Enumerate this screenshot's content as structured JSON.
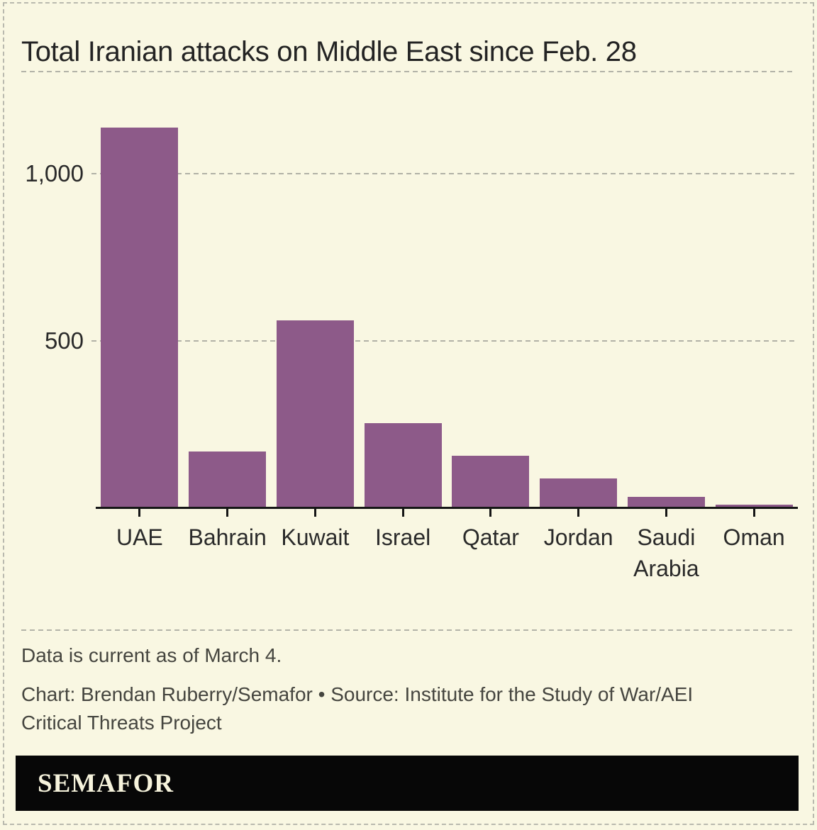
{
  "title": "Total Iranian attacks on Middle East since Feb. 28",
  "chart_data": {
    "type": "bar",
    "title": "Total Iranian attacks on Middle East since Feb. 28",
    "categories": [
      "UAE",
      "Bahrain",
      "Kuwait",
      "Israel",
      "Qatar",
      "Jordan",
      "Saudi Arabia",
      "Oman"
    ],
    "values": [
      1140,
      168,
      560,
      253,
      156,
      88,
      32,
      9
    ],
    "xlabel": "",
    "ylabel": "",
    "ylim": [
      0,
      1190
    ],
    "yticks": [
      {
        "value": 1000,
        "label": "1,000"
      },
      {
        "value": 500,
        "label": "500"
      }
    ],
    "grid": "horizontal-dashed",
    "legend": "none",
    "bar_color": "#8d5a89"
  },
  "footnote": "Data is current as of March 4.",
  "credit": {
    "line1": "Chart: Brendan Ruberry/Semafor • Source: Institute for the Study of War/AEI",
    "line2": "Critical Threats Project"
  },
  "logo": {
    "text": "SEMAFOR"
  },
  "colors": {
    "background": "#f9f7e2",
    "bar": "#8d5a89",
    "axis": "#161616",
    "dashed_lines": "#b3b3a8",
    "text": "#232323",
    "footer_text": "#45453f",
    "logo_bar": "#070707",
    "logo_text": "#f6f3dc"
  }
}
